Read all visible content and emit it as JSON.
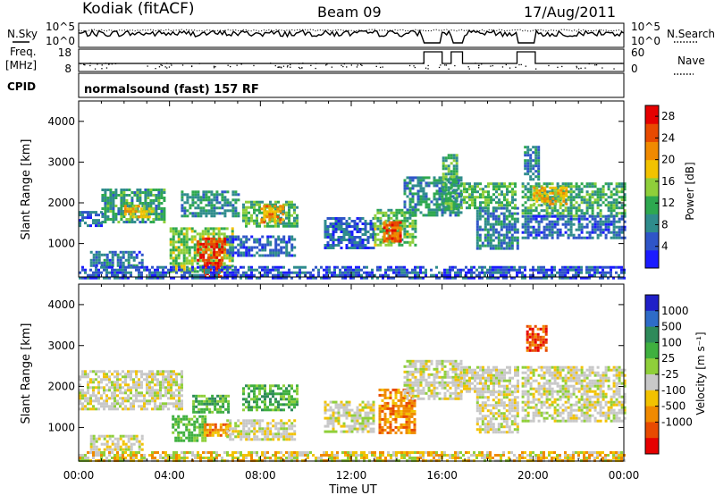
{
  "header": {
    "station": "Kodiak (fitACF)",
    "beam": "Beam 09",
    "date": "17/Aug/2011"
  },
  "panel_labels": {
    "nsky": "N.Sky",
    "nsearch": "N.Search",
    "freq_line1": "Freq.",
    "freq_line2": "[MHz]",
    "nave": "Nave",
    "cpid": "CPID",
    "cpid_text": "normalsound (fast) 157 RF"
  },
  "colors": {
    "power_scale": [
      "#1b1bff",
      "#2f55c8",
      "#2f8c8c",
      "#2ea84f",
      "#8fcf3a",
      "#f2c200",
      "#f08a00",
      "#e84a00",
      "#e60000"
    ],
    "velocity_scale": [
      "#2020c8",
      "#2e6cc8",
      "#2e8a5a",
      "#3fb03f",
      "#8fcf3a",
      "#c8c8c8",
      "#f2c200",
      "#f08a00",
      "#e84a00",
      "#e60000"
    ]
  },
  "chart_data": [
    {
      "type": "line",
      "id": "noise-panel",
      "y_left_ticks": [
        "10^5",
        "10^0"
      ],
      "y_right_ticks": [
        "10^5",
        "10^0"
      ],
      "series": [
        {
          "name": "N.Sky",
          "style": "solid"
        },
        {
          "name": "N.Search",
          "style": "dotted"
        }
      ]
    },
    {
      "type": "line",
      "id": "freq-nave-panel",
      "y_left_ticks": [
        "18",
        "8"
      ],
      "y_right_ticks": [
        "60",
        "0"
      ],
      "series": [
        {
          "name": "Freq.",
          "style": "solid"
        },
        {
          "name": "Nave",
          "style": "dotted"
        }
      ]
    },
    {
      "type": "heatmap",
      "id": "power",
      "ylabel": "Slant Range [km]",
      "y_ticks": [
        "4000",
        "3000",
        "2000",
        "1000"
      ],
      "ylim": [
        180,
        4500
      ],
      "xlim_hours": [
        0,
        24
      ],
      "colorbar": {
        "label": "Power [dB]",
        "ticks": [
          "28",
          "24",
          "20",
          "16",
          "12",
          "8",
          "4"
        ],
        "range": [
          0,
          30
        ]
      },
      "regions": [
        {
          "t0": 0.0,
          "t1": 1.0,
          "r0": 1450,
          "r1": 1800,
          "level": 6
        },
        {
          "t0": 1.0,
          "t1": 3.8,
          "r0": 1500,
          "r1": 2350,
          "level": 10
        },
        {
          "t0": 2.0,
          "t1": 3.2,
          "r0": 1650,
          "r1": 1950,
          "level": 18
        },
        {
          "t0": 0.5,
          "t1": 2.8,
          "r0": 480,
          "r1": 820,
          "level": 7
        },
        {
          "t0": 4.0,
          "t1": 6.8,
          "r0": 300,
          "r1": 1400,
          "level": 14
        },
        {
          "t0": 5.2,
          "t1": 6.4,
          "r0": 600,
          "r1": 1150,
          "level": 26
        },
        {
          "t0": 5.5,
          "t1": 6.3,
          "r0": 200,
          "r1": 550,
          "level": 27
        },
        {
          "t0": 4.5,
          "t1": 7.0,
          "r0": 1700,
          "r1": 2300,
          "level": 9
        },
        {
          "t0": 7.2,
          "t1": 9.6,
          "r0": 1400,
          "r1": 2050,
          "level": 12
        },
        {
          "t0": 8.0,
          "t1": 9.0,
          "r0": 1500,
          "r1": 1950,
          "level": 20
        },
        {
          "t0": 6.5,
          "t1": 9.5,
          "r0": 700,
          "r1": 1200,
          "level": 6
        },
        {
          "t0": 10.8,
          "t1": 13.0,
          "r0": 900,
          "r1": 1650,
          "level": 6
        },
        {
          "t0": 13.0,
          "t1": 14.8,
          "r0": 950,
          "r1": 1850,
          "level": 13
        },
        {
          "t0": 13.4,
          "t1": 14.2,
          "r0": 1050,
          "r1": 1550,
          "level": 24
        },
        {
          "t0": 14.3,
          "t1": 16.8,
          "r0": 1700,
          "r1": 2650,
          "level": 9
        },
        {
          "t0": 16.0,
          "t1": 16.7,
          "r0": 1850,
          "r1": 3200,
          "level": 11
        },
        {
          "t0": 16.8,
          "t1": 19.2,
          "r0": 1900,
          "r1": 2500,
          "level": 12
        },
        {
          "t0": 17.5,
          "t1": 19.3,
          "r0": 900,
          "r1": 1900,
          "level": 8
        },
        {
          "t0": 19.5,
          "t1": 24.0,
          "r0": 1700,
          "r1": 2500,
          "level": 11
        },
        {
          "t0": 20.0,
          "t1": 21.5,
          "r0": 2000,
          "r1": 2400,
          "level": 19
        },
        {
          "t0": 19.6,
          "t1": 20.2,
          "r0": 2600,
          "r1": 3400,
          "level": 8
        },
        {
          "t0": 19.5,
          "t1": 24.0,
          "r0": 1150,
          "r1": 1700,
          "level": 6
        },
        {
          "t0": 0.0,
          "t1": 24.0,
          "r0": 180,
          "r1": 450,
          "level": 5
        }
      ]
    },
    {
      "type": "heatmap",
      "id": "velocity",
      "ylabel": "Slant Range [km]",
      "xlabel": "Time UT",
      "y_ticks": [
        "4000",
        "3000",
        "2000",
        "1000"
      ],
      "x_ticks": [
        "00:00",
        "04:00",
        "08:00",
        "12:00",
        "16:00",
        "20:00",
        "00:00"
      ],
      "ylim": [
        180,
        4500
      ],
      "xlim_hours": [
        0,
        24
      ],
      "colorbar": {
        "label": "Velocity [m s⁻¹]",
        "ticks": [
          "1000",
          "500",
          "100",
          "25",
          "-25",
          "-100",
          "-500",
          "-1000"
        ]
      },
      "regions": [
        {
          "t0": 0.0,
          "t1": 4.5,
          "r0": 1450,
          "r1": 2400,
          "class": "low"
        },
        {
          "t0": 0.5,
          "t1": 2.8,
          "r0": 480,
          "r1": 820,
          "class": "low"
        },
        {
          "t0": 4.1,
          "t1": 5.6,
          "r0": 700,
          "r1": 1300,
          "class": "pos_med"
        },
        {
          "t0": 5.5,
          "t1": 6.6,
          "r0": 800,
          "r1": 1100,
          "class": "neg_med"
        },
        {
          "t0": 5.0,
          "t1": 6.6,
          "r0": 1400,
          "r1": 1800,
          "class": "pos_high"
        },
        {
          "t0": 7.2,
          "t1": 9.6,
          "r0": 1400,
          "r1": 2050,
          "class": "pos_high"
        },
        {
          "t0": 6.5,
          "t1": 9.5,
          "r0": 700,
          "r1": 1200,
          "class": "low"
        },
        {
          "t0": 10.8,
          "t1": 13.0,
          "r0": 900,
          "r1": 1650,
          "class": "low"
        },
        {
          "t0": 13.2,
          "t1": 14.8,
          "r0": 900,
          "r1": 1950,
          "class": "neg_med"
        },
        {
          "t0": 14.3,
          "t1": 16.8,
          "r0": 1700,
          "r1": 2650,
          "class": "low"
        },
        {
          "t0": 16.8,
          "t1": 19.3,
          "r0": 1900,
          "r1": 2500,
          "class": "low"
        },
        {
          "t0": 17.5,
          "t1": 19.3,
          "r0": 900,
          "r1": 1900,
          "class": "low"
        },
        {
          "t0": 19.5,
          "t1": 24.0,
          "r0": 1150,
          "r1": 2500,
          "class": "low"
        },
        {
          "t0": 19.7,
          "t1": 20.6,
          "r0": 2900,
          "r1": 3500,
          "class": "neg_high"
        },
        {
          "t0": 0.0,
          "t1": 24.0,
          "r0": 180,
          "r1": 420,
          "class": "low_neg"
        }
      ]
    }
  ]
}
